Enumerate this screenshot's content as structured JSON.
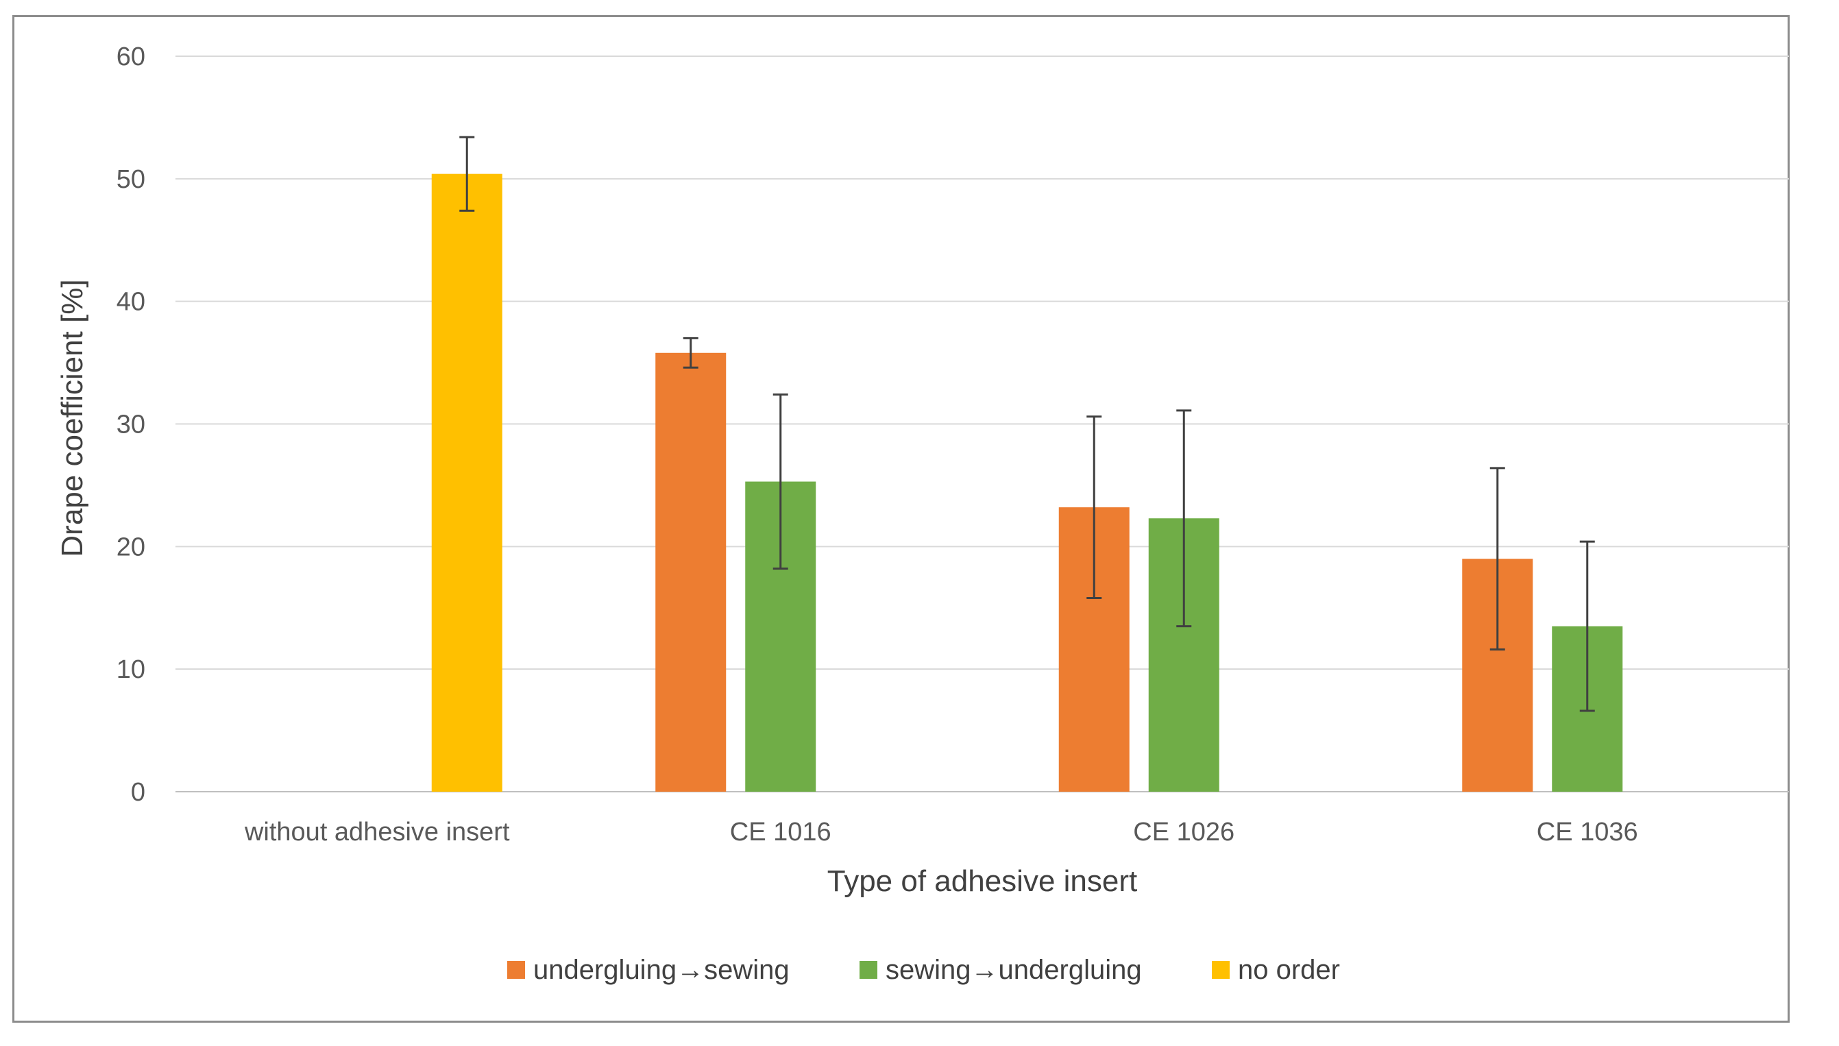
{
  "chart_data": {
    "type": "bar",
    "title": "",
    "xlabel": "Type of adhesive insert",
    "ylabel": "Drape coefficient [%]",
    "ylim": [
      0,
      60
    ],
    "yticks": [
      0,
      10,
      20,
      30,
      40,
      50,
      60
    ],
    "grid": true,
    "legend_position": "bottom",
    "categories": [
      "without adhesive insert",
      "CE 1016",
      "CE 1026",
      "CE 1036"
    ],
    "series": [
      {
        "name": "undergluing→sewing",
        "color": "#ED7D31",
        "values": [
          null,
          35.8,
          23.2,
          19.0
        ],
        "error": [
          null,
          1.2,
          7.4,
          7.4
        ]
      },
      {
        "name": "sewing→undergluing",
        "color": "#70AD47",
        "values": [
          null,
          25.3,
          22.3,
          13.5
        ],
        "error": [
          null,
          7.1,
          8.8,
          6.9
        ]
      },
      {
        "name": "no order",
        "color": "#FFC000",
        "values": [
          50.4,
          null,
          null,
          null
        ],
        "error": [
          3.0,
          null,
          null,
          null
        ]
      }
    ]
  }
}
